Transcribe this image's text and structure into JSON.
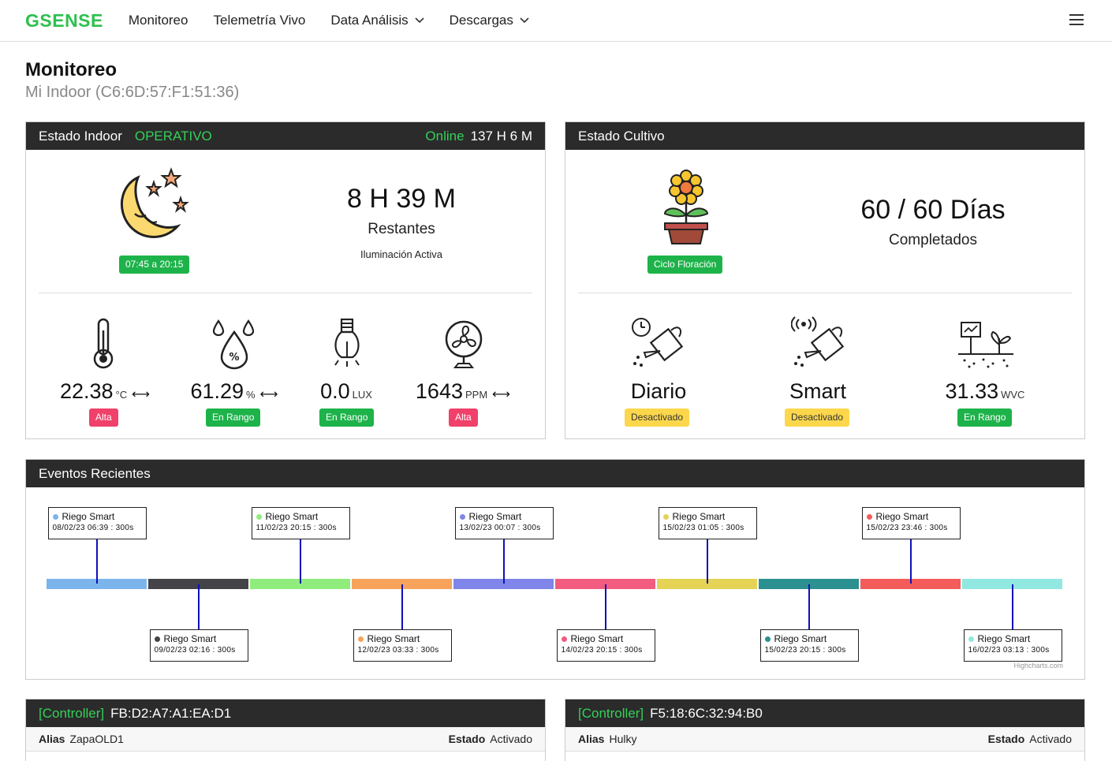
{
  "nav": {
    "brand": "GSENSE",
    "items": [
      "Monitoreo",
      "Telemetría Vivo",
      "Data Análisis",
      "Descargas"
    ]
  },
  "header": {
    "title": "Monitoreo",
    "subtitle": "Mi Indoor (C6:6D:57:F1:51:36)"
  },
  "indoor": {
    "title": "Estado Indoor",
    "status": "OPERATIVO",
    "online_label": "Online",
    "uptime": "137 H 6 M",
    "schedule": "07:45 a 20:15",
    "remaining_time": "8 H 39 M",
    "remaining_label": "Restantes",
    "light_status": "Iluminación Activa",
    "metrics": [
      {
        "value": "22.38",
        "unit": "°C",
        "badge": "Alta",
        "icon": "thermometer-icon"
      },
      {
        "value": "61.29",
        "unit": "%",
        "badge": "En Rango",
        "icon": "humidity-icon"
      },
      {
        "value": "0.0",
        "unit": "LUX",
        "badge": "En Rango",
        "icon": "bulb-icon"
      },
      {
        "value": "1643",
        "unit": "PPM",
        "badge": "Alta",
        "icon": "fan-icon"
      }
    ]
  },
  "cultivo": {
    "title": "Estado Cultivo",
    "cycle": "Ciclo Floración",
    "days": "60 / 60 Días",
    "days_label": "Completados",
    "items": [
      {
        "value": "Diario",
        "badge": "Desactivado",
        "icon": "watering-timer-icon"
      },
      {
        "value": "Smart",
        "badge": "Desactivado",
        "icon": "watering-smart-icon"
      },
      {
        "value": "31.33",
        "unit": "WVC",
        "badge": "En Rango",
        "icon": "soil-sensor-icon"
      }
    ]
  },
  "events": {
    "title": "Eventos Recientes",
    "credits": "Highcharts.com",
    "items": [
      {
        "name": "Riego Smart",
        "date": "08/02/23 06:39 : 300s",
        "color": "#7cb5ec"
      },
      {
        "name": "Riego Smart",
        "date": "09/02/23 02:16 : 300s",
        "color": "#434348"
      },
      {
        "name": "Riego Smart",
        "date": "11/02/23 20:15 : 300s",
        "color": "#90ed7d"
      },
      {
        "name": "Riego Smart",
        "date": "12/02/23 03:33 : 300s",
        "color": "#f7a35c"
      },
      {
        "name": "Riego Smart",
        "date": "13/02/23 00:07 : 300s",
        "color": "#8085e9"
      },
      {
        "name": "Riego Smart",
        "date": "14/02/23 20:15 : 300s",
        "color": "#f15c80"
      },
      {
        "name": "Riego Smart",
        "date": "15/02/23 01:05 : 300s",
        "color": "#e4d354"
      },
      {
        "name": "Riego Smart",
        "date": "15/02/23 20:15 : 300s",
        "color": "#2b908f"
      },
      {
        "name": "Riego Smart",
        "date": "15/02/23 23:46 : 300s",
        "color": "#f45b5b"
      },
      {
        "name": "Riego Smart",
        "date": "16/02/23 03:13 : 300s",
        "color": "#91e8e1"
      }
    ]
  },
  "controllers": [
    {
      "tag": "[Controller]",
      "mac": "FB:D2:A7:A1:EA:D1",
      "alias_label": "Alias",
      "alias": "ZapaOLD1",
      "estado_label": "Estado",
      "estado": "Activado"
    },
    {
      "tag": "[Controller]",
      "mac": "F5:18:6C:32:94:B0",
      "alias_label": "Alias",
      "alias": "Hulky",
      "estado_label": "Estado",
      "estado": "Activado"
    }
  ]
}
